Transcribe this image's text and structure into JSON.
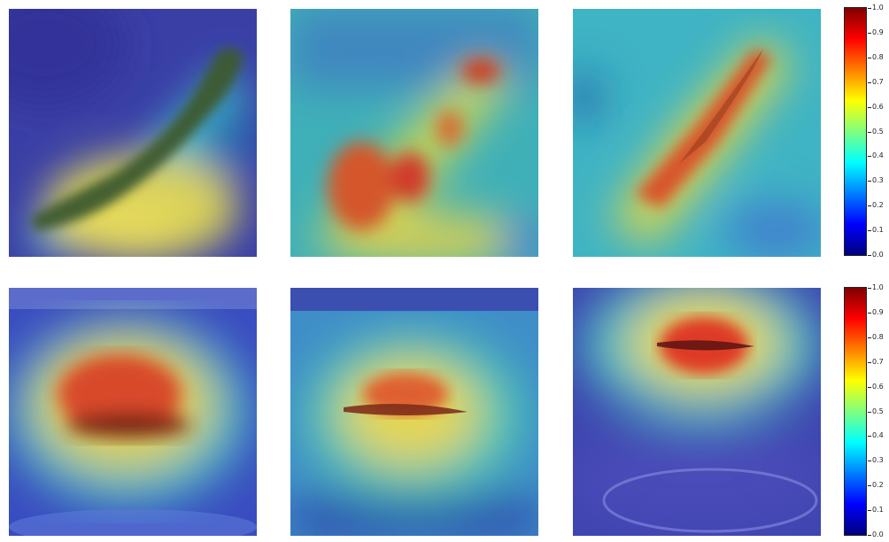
{
  "panels": [
    {
      "id": "r1c1",
      "subject": "elongated lesion, yellow-green activation",
      "peak": 0.65
    },
    {
      "id": "r1c2",
      "subject": "elongated lesion, red activation spots",
      "peak": 0.85
    },
    {
      "id": "r1c3",
      "subject": "diagonal lesion, red-orange activation",
      "peak": 0.8
    },
    {
      "id": "r2c1",
      "subject": "oval lesion, red centre",
      "peak": 0.85
    },
    {
      "id": "r2c2",
      "subject": "thin horizontal lesion, red centre",
      "peak": 0.9
    },
    {
      "id": "r2c3",
      "subject": "small lesion, strong red activation",
      "peak": 0.95
    }
  ],
  "colorbar": {
    "ticks": [
      "1.0",
      "0.9",
      "0.8",
      "0.7",
      "0.6",
      "0.5",
      "0.4",
      "0.3",
      "0.2",
      "0.1",
      "0.0"
    ],
    "colors": [
      "#7f0000",
      "#ff0000",
      "#ff7f00",
      "#ffff00",
      "#7fff7f",
      "#00ffff",
      "#007fff",
      "#0000ff",
      "#00007f"
    ]
  }
}
